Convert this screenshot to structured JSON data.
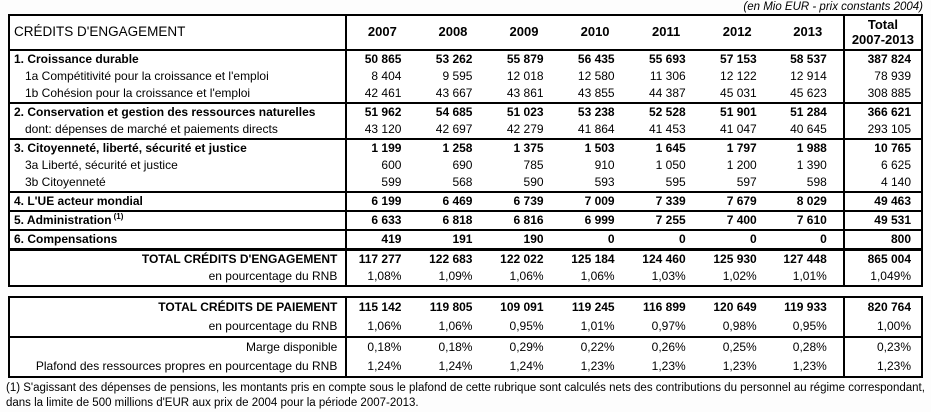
{
  "meta": {
    "unit_note": "(en Mio EUR - prix constants 2004)"
  },
  "table1": {
    "header_label": "CRÉDITS D'ENGAGEMENT",
    "years": [
      "2007",
      "2008",
      "2009",
      "2010",
      "2011",
      "2012",
      "2013"
    ],
    "total_header_line1": "Total",
    "total_header_line2": "2007-2013",
    "rows": [
      {
        "label": "1. Croissance durable",
        "bold": true,
        "values": [
          "50 865",
          "53 262",
          "55 879",
          "56 435",
          "55 693",
          "57 153",
          "58 537"
        ],
        "total": "387 824"
      },
      {
        "label": "1a Compétitivité pour la croissance et l'emploi",
        "indent": true,
        "values": [
          "8 404",
          "9 595",
          "12 018",
          "12 580",
          "11 306",
          "12 122",
          "12 914"
        ],
        "total": "78 939"
      },
      {
        "label": "1b Cohésion pour la croissance et l'emploi",
        "indent": true,
        "values": [
          "42 461",
          "43 667",
          "43 861",
          "43 855",
          "44 387",
          "45 031",
          "45 623"
        ],
        "total": "308 885"
      },
      {
        "label": "2. Conservation et gestion des ressources naturelles",
        "bold": true,
        "sep": true,
        "values": [
          "51 962",
          "54 685",
          "51 023",
          "53 238",
          "52 528",
          "51 901",
          "51 284"
        ],
        "total": "366 621"
      },
      {
        "label": "dont: dépenses de marché et paiements directs",
        "indent": true,
        "values": [
          "43 120",
          "42 697",
          "42 279",
          "41 864",
          "41 453",
          "41 047",
          "40 645"
        ],
        "total": "293 105"
      },
      {
        "label": "3. Citoyenneté, liberté, sécurité et justice",
        "bold": true,
        "sep": true,
        "values": [
          "1 199",
          "1 258",
          "1 375",
          "1 503",
          "1 645",
          "1 797",
          "1 988"
        ],
        "total": "10 765"
      },
      {
        "label": "3a Liberté, sécurité et justice",
        "indent": true,
        "values": [
          "600",
          "690",
          "785",
          "910",
          "1 050",
          "1 200",
          "1 390"
        ],
        "total": "6 625"
      },
      {
        "label": "3b Citoyenneté",
        "indent": true,
        "values": [
          "599",
          "568",
          "590",
          "593",
          "595",
          "597",
          "598"
        ],
        "total": "4 140"
      },
      {
        "label": "4. L'UE acteur mondial",
        "bold": true,
        "sep": true,
        "values": [
          "6 199",
          "6 469",
          "6 739",
          "7 009",
          "7 339",
          "7 679",
          "8 029"
        ],
        "total": "49 463"
      },
      {
        "label": "5. Administration",
        "sup": "(1)",
        "bold": true,
        "sep": true,
        "values": [
          "6 633",
          "6 818",
          "6 816",
          "6 999",
          "7 255",
          "7 400",
          "7 610"
        ],
        "total": "49 531"
      },
      {
        "label": "6. Compensations",
        "bold": true,
        "sep": true,
        "values": [
          "419",
          "191",
          "190",
          "0",
          "0",
          "0",
          "0"
        ],
        "total": "800"
      },
      {
        "label": "TOTAL CRÉDITS D'ENGAGEMENT",
        "bold": true,
        "right": true,
        "sep_thick": true,
        "values": [
          "117 277",
          "122 683",
          "122 022",
          "125 184",
          "124 460",
          "125 930",
          "127 448"
        ],
        "total": "865 004"
      },
      {
        "label": "en pourcentage du RNB",
        "right": true,
        "values": [
          "1,08%",
          "1,09%",
          "1,06%",
          "1,06%",
          "1,03%",
          "1,02%",
          "1,01%"
        ],
        "total": "1,049%"
      }
    ]
  },
  "table2": {
    "rows": [
      {
        "label": "TOTAL CRÉDITS DE PAIEMENT",
        "bold": true,
        "right": true,
        "values": [
          "115 142",
          "119 805",
          "109 091",
          "119 245",
          "116 899",
          "120 649",
          "119 933"
        ],
        "total": "820 764"
      },
      {
        "label": "en pourcentage du RNB",
        "right": true,
        "values": [
          "1,06%",
          "1,06%",
          "0,95%",
          "1,01%",
          "0,97%",
          "0,98%",
          "0,95%"
        ],
        "total": "1,00%"
      },
      {
        "label": "Marge disponible",
        "right": true,
        "sep": true,
        "values": [
          "0,18%",
          "0,18%",
          "0,29%",
          "0,22%",
          "0,26%",
          "0,25%",
          "0,28%"
        ],
        "total": "0,23%"
      },
      {
        "label": "Plafond des ressources propres en pourcentage du RNB",
        "right": true,
        "values": [
          "1,24%",
          "1,24%",
          "1,24%",
          "1,23%",
          "1,23%",
          "1,23%",
          "1,23%"
        ],
        "total": "1,23%"
      }
    ]
  },
  "footnote": "(1) S'agissant des dépenses de pensions, les montants pris en compte sous le plafond de cette rubrique sont calculés nets des contributions du personnel au régime correspondant, dans la limite de 500 millions d'EUR aux prix de 2004 pour la période 2007-2013."
}
